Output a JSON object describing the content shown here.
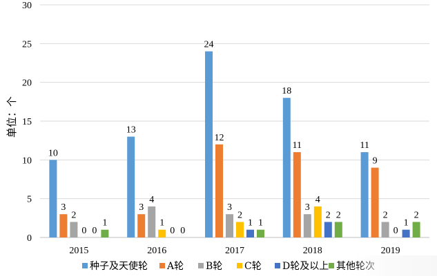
{
  "chart_data": {
    "type": "bar",
    "title": "",
    "xlabel": "",
    "ylabel": "单位：个",
    "ylim": [
      0,
      30
    ],
    "yticks": [
      0,
      5,
      10,
      15,
      20,
      25,
      30
    ],
    "grid": true,
    "legend_position": "bottom",
    "categories": [
      "2015",
      "2016",
      "2017",
      "2018",
      "2019"
    ],
    "series": [
      {
        "name": "种子及天使轮",
        "color": "#5B9BD5",
        "values": [
          10,
          13,
          24,
          18,
          11
        ]
      },
      {
        "name": "A轮",
        "color": "#ED7D31",
        "values": [
          3,
          3,
          12,
          11,
          9
        ]
      },
      {
        "name": "B轮",
        "color": "#A5A5A5",
        "values": [
          2,
          4,
          3,
          3,
          2
        ]
      },
      {
        "name": "C轮",
        "color": "#FFC000",
        "values": [
          0,
          1,
          2,
          4,
          0
        ]
      },
      {
        "name": "D轮及以上",
        "color": "#4472C4",
        "values": [
          0,
          0,
          1,
          2,
          1
        ]
      },
      {
        "name": "其他轮次",
        "color": "#70AD47",
        "values": [
          1,
          0,
          1,
          2,
          2
        ]
      }
    ]
  }
}
